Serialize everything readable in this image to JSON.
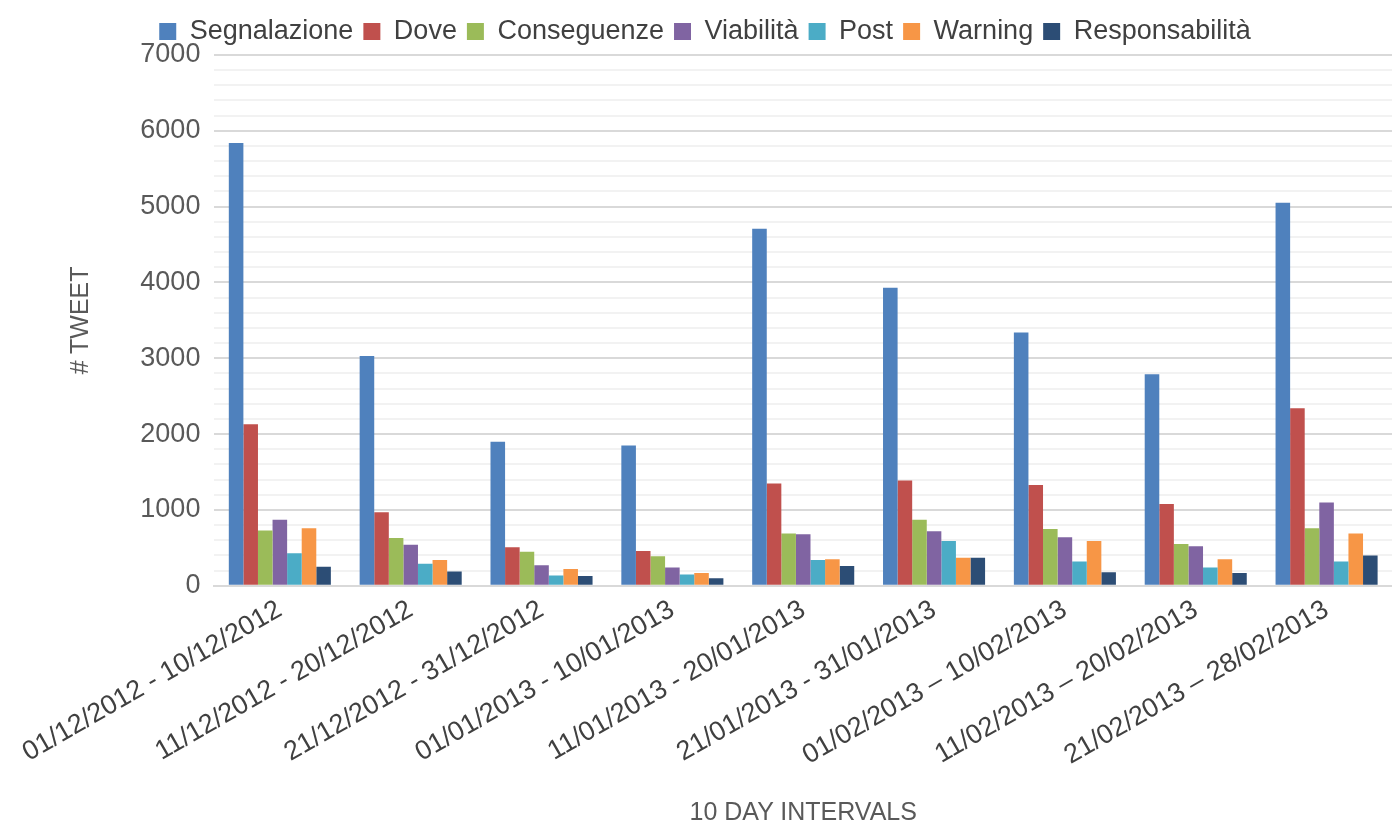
{
  "chart_data": {
    "type": "bar",
    "xlabel": "10 DAY INTERVALS",
    "ylabel": "# TWEET",
    "categories": [
      "01/12/2012 - 10/12/2012",
      "11/12/2012 - 20/12/2012",
      "21/12/2012 - 31/12/2012",
      "01/01/2013 - 10/01/2013",
      "11/01/2013 - 20/01/2013",
      "21/01/2013 - 31/01/2013",
      "01/02/2013 – 10/02/2013",
      "11/02/2013 – 20/02/2013",
      "21/02/2013 – 28/02/2013"
    ],
    "series": [
      {
        "name": "Segnalazione",
        "color": "#4f81bd",
        "values": [
          5840,
          3030,
          1900,
          1850,
          4710,
          3930,
          3340,
          2790,
          5050
        ]
      },
      {
        "name": "Dove",
        "color": "#c0504d",
        "values": [
          2130,
          970,
          510,
          460,
          1350,
          1390,
          1330,
          1080,
          2340
        ]
      },
      {
        "name": "Conseguenze",
        "color": "#9bbb59",
        "values": [
          730,
          630,
          450,
          390,
          690,
          870,
          750,
          550,
          760
        ]
      },
      {
        "name": "Viabilità",
        "color": "#8064a2",
        "values": [
          870,
          540,
          270,
          240,
          680,
          720,
          640,
          520,
          1100
        ]
      },
      {
        "name": "Post",
        "color": "#4bacc6",
        "values": [
          430,
          290,
          135,
          150,
          340,
          590,
          320,
          240,
          320
        ]
      },
      {
        "name": "Warning",
        "color": "#f79646",
        "values": [
          760,
          340,
          220,
          170,
          350,
          370,
          590,
          350,
          690
        ]
      },
      {
        "name": "Responsabilità",
        "color": "#2c4d75",
        "values": [
          250,
          190,
          130,
          100,
          260,
          370,
          180,
          170,
          400
        ]
      }
    ],
    "ylim": [
      0,
      7000
    ],
    "yticks": [
      0,
      {
        "value": 200,
        "label": null
      },
      {
        "value": 400,
        "label": null
      },
      {
        "value": 600,
        "label": null
      },
      {
        "value": 800,
        "label": null
      },
      1000,
      {
        "value": 1200,
        "label": null
      },
      {
        "value": 1400,
        "label": null
      },
      {
        "value": 1600,
        "label": null
      },
      {
        "value": 1800,
        "label": null
      },
      2000,
      {
        "value": 2200,
        "label": null
      },
      {
        "value": 2400,
        "label": null
      },
      {
        "value": 2600,
        "label": null
      },
      {
        "value": 2800,
        "label": null
      },
      3000,
      {
        "value": 3200,
        "label": null
      },
      {
        "value": 3400,
        "label": null
      },
      {
        "value": 3600,
        "label": null
      },
      {
        "value": 3800,
        "label": null
      },
      4000,
      {
        "value": 4200,
        "label": null
      },
      {
        "value": 4400,
        "label": null
      },
      {
        "value": 4600,
        "label": null
      },
      {
        "value": 4800,
        "label": null
      },
      5000,
      {
        "value": 5200,
        "label": null
      },
      {
        "value": 5400,
        "label": null
      },
      {
        "value": 5600,
        "label": null
      },
      {
        "value": 5800,
        "label": null
      },
      6000,
      {
        "value": 6200,
        "label": null
      },
      {
        "value": 6400,
        "label": null
      },
      {
        "value": 6600,
        "label": null
      },
      {
        "value": 6800,
        "label": null
      },
      7000
    ],
    "grid": "y",
    "legend": "top"
  }
}
